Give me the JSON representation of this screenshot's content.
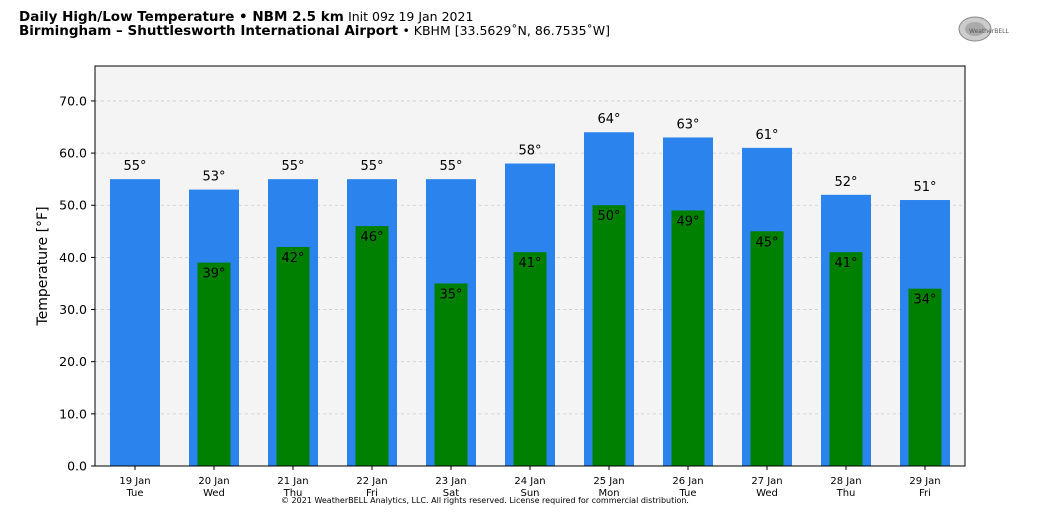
{
  "header": {
    "title_bold": "Daily High/Low Temperature • NBM 2.5 km",
    "init": "Init 09z 19 Jan 2021",
    "location_bold": "Birmingham – Shuttlesworth International Airport",
    "station": "• KBHM [33.5629˚N, 86.7535˚W]"
  },
  "logo_text": "WeatherBELL",
  "copyright": "© 2021 WeatherBELL Analytics, LLC. All rights reserved. License required for commercial distribution.",
  "colors": {
    "high": "#2b83ee",
    "low": "#008000",
    "plot_bg": "#f4f4f4"
  },
  "chart_data": {
    "type": "bar",
    "ylabel": "Temperature [°F]",
    "ylim": [
      0,
      76.7
    ],
    "yticks": [
      "0.0",
      "10.0",
      "20.0",
      "30.0",
      "40.0",
      "50.0",
      "60.0",
      "70.0"
    ],
    "grid": true,
    "categories": [
      [
        "19 Jan",
        "Tue"
      ],
      [
        "20 Jan",
        "Wed"
      ],
      [
        "21 Jan",
        "Thu"
      ],
      [
        "22 Jan",
        "Fri"
      ],
      [
        "23 Jan",
        "Sat"
      ],
      [
        "24 Jan",
        "Sun"
      ],
      [
        "25 Jan",
        "Mon"
      ],
      [
        "26 Jan",
        "Tue"
      ],
      [
        "27 Jan",
        "Wed"
      ],
      [
        "28 Jan",
        "Thu"
      ],
      [
        "29 Jan",
        "Fri"
      ]
    ],
    "series": [
      {
        "name": "High",
        "values": [
          55,
          53,
          55,
          55,
          55,
          58,
          64,
          63,
          61,
          52,
          51
        ]
      },
      {
        "name": "Low",
        "values": [
          null,
          39,
          42,
          46,
          35,
          41,
          50,
          49,
          45,
          41,
          34
        ]
      }
    ]
  }
}
